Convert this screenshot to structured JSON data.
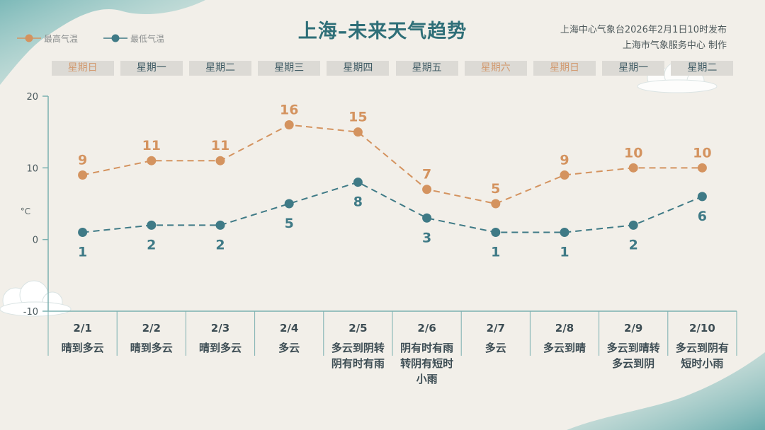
{
  "title": "上海–未来天气趋势",
  "issuer": {
    "line1": "上海中心气象台2026年2月1日10时发布",
    "line2": "上海市气象服务中心  制作"
  },
  "legend": {
    "high_label": "最高气温",
    "low_label": "最低气温"
  },
  "weekdays": [
    "星期日",
    "星期一",
    "星期二",
    "星期三",
    "星期四",
    "星期五",
    "星期六",
    "星期日",
    "星期一",
    "星期二"
  ],
  "weekend_flags": [
    true,
    false,
    false,
    false,
    false,
    false,
    true,
    true,
    false,
    false
  ],
  "dates": [
    "2/1",
    "2/2",
    "2/3",
    "2/4",
    "2/5",
    "2/6",
    "2/7",
    "2/8",
    "2/9",
    "2/10"
  ],
  "descriptions": [
    [
      "晴到多云"
    ],
    [
      "晴到多云"
    ],
    [
      "晴到多云"
    ],
    [
      "多云"
    ],
    [
      "多云到阴转",
      "阴有时有雨"
    ],
    [
      "阴有时有雨",
      "转阴有短时",
      "小雨"
    ],
    [
      "多云"
    ],
    [
      "多云到晴"
    ],
    [
      "多云到晴转",
      "多云到阴"
    ],
    [
      "多云到阴有",
      "短时小雨"
    ]
  ],
  "colors": {
    "high": "#d4935f",
    "low": "#3f7a86",
    "axis": "#7bb0b0",
    "title": "#2f6f78",
    "weekend": "#d29a70"
  },
  "chart_data": {
    "type": "line",
    "x": [
      "2/1",
      "2/2",
      "2/3",
      "2/4",
      "2/5",
      "2/6",
      "2/7",
      "2/8",
      "2/9",
      "2/10"
    ],
    "series": [
      {
        "name": "最高气温",
        "values": [
          9,
          11,
          11,
          16,
          15,
          7,
          5,
          9,
          10,
          10
        ]
      },
      {
        "name": "最低气温",
        "values": [
          1,
          2,
          2,
          5,
          8,
          3,
          1,
          1,
          2,
          6
        ]
      }
    ],
    "ylabel": "°C",
    "ylim": [
      -10,
      20
    ],
    "yticks": [
      "20",
      "10",
      "0",
      "-10"
    ],
    "yticks_values": [
      20,
      10,
      0,
      -10
    ],
    "grid": false,
    "legend": "top-left",
    "data_labels": true
  }
}
